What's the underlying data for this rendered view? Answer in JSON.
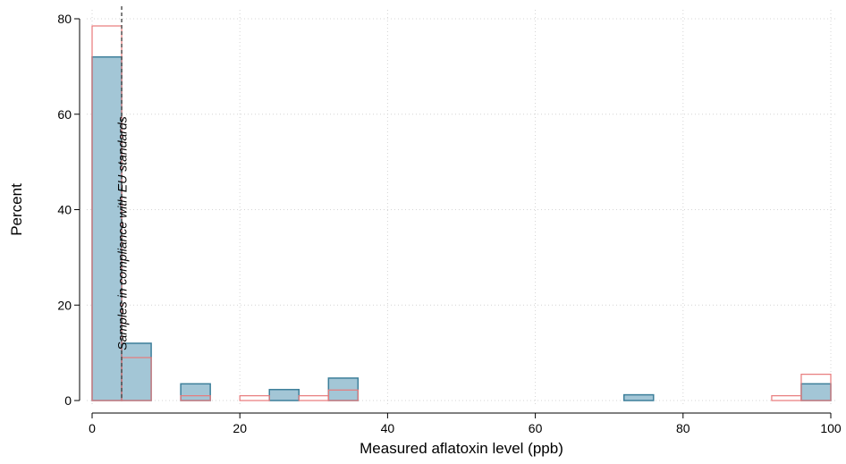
{
  "chart_data": {
    "type": "bar",
    "xlabel": "Measured aflatoxin level (ppb)",
    "ylabel": "Percent",
    "xlim": [
      0,
      100
    ],
    "ylim": [
      0,
      80
    ],
    "xticks": [
      0,
      20,
      40,
      60,
      80,
      100
    ],
    "yticks": [
      0,
      20,
      40,
      60,
      80
    ],
    "bin_width": 4,
    "grid": true,
    "threshold": {
      "x": 4,
      "label": "Samples in compliance with EU standards",
      "style": "dashed",
      "color": "#555555"
    },
    "series": [
      {
        "style": "filled",
        "fill": "#a3c6d6",
        "stroke": "#3d7f9a",
        "bins": [
          {
            "x0": 0,
            "x1": 4,
            "value": 72
          },
          {
            "x0": 4,
            "x1": 8,
            "value": 12
          },
          {
            "x0": 12,
            "x1": 16,
            "value": 3.5
          },
          {
            "x0": 24,
            "x1": 28,
            "value": 2.3
          },
          {
            "x0": 32,
            "x1": 36,
            "value": 4.7
          },
          {
            "x0": 72,
            "x1": 76,
            "value": 1.2
          },
          {
            "x0": 96,
            "x1": 100,
            "value": 3.5
          }
        ]
      },
      {
        "style": "outline",
        "fill": "none",
        "stroke": "#e8797a",
        "bins": [
          {
            "x0": 0,
            "x1": 4,
            "value": 78.5
          },
          {
            "x0": 4,
            "x1": 8,
            "value": 9
          },
          {
            "x0": 12,
            "x1": 16,
            "value": 1
          },
          {
            "x0": 20,
            "x1": 24,
            "value": 1
          },
          {
            "x0": 28,
            "x1": 32,
            "value": 1
          },
          {
            "x0": 32,
            "x1": 36,
            "value": 2.2
          },
          {
            "x0": 92,
            "x1": 96,
            "value": 1
          },
          {
            "x0": 96,
            "x1": 100,
            "value": 5.5
          }
        ]
      }
    ]
  }
}
